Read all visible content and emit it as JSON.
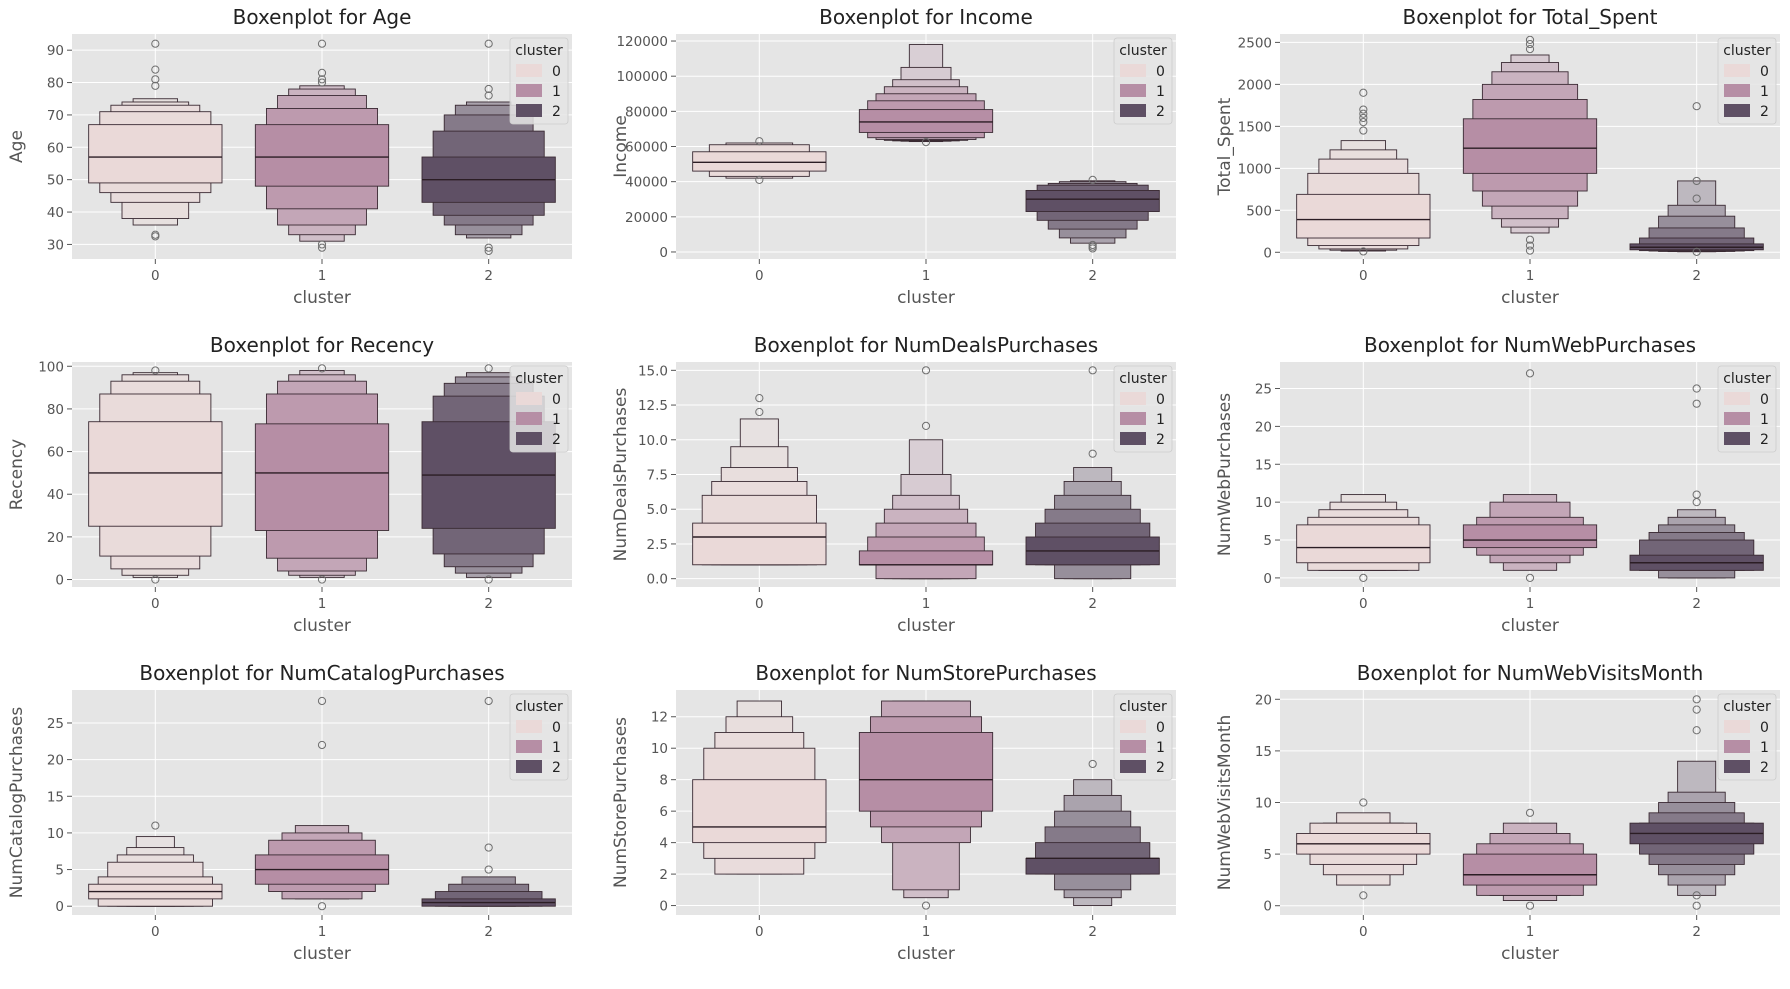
{
  "legend": {
    "title": "cluster",
    "placement": "upper right"
  },
  "palette": [
    "#ead9d8",
    "#b68ea5",
    "#5f5065"
  ],
  "background": "#e5e5e5",
  "grid": true,
  "chart_data": [
    {
      "type": "boxenplot",
      "title": "Boxenplot for Age",
      "xlabel": "cluster",
      "ylabel": "Age",
      "categories": [
        "0",
        "1",
        "2"
      ],
      "ylim": [
        25.5,
        95
      ],
      "yticks": [
        30,
        40,
        50,
        60,
        70,
        80,
        90
      ],
      "series": [
        {
          "name": "0",
          "median": 57,
          "levels": [
            [
              49,
              67
            ],
            [
              46,
              71
            ],
            [
              43,
              73
            ],
            [
              38,
              74
            ],
            [
              36,
              75
            ]
          ],
          "outliers": [
            33,
            32.5,
            79,
            81,
            84,
            92
          ]
        },
        {
          "name": "1",
          "median": 57,
          "levels": [
            [
              48,
              67
            ],
            [
              41,
              72
            ],
            [
              36,
              76
            ],
            [
              33,
              78
            ],
            [
              31,
              79
            ]
          ],
          "outliers": [
            29,
            30,
            80,
            81,
            83,
            92
          ]
        },
        {
          "name": "2",
          "median": 50,
          "levels": [
            [
              43,
              57
            ],
            [
              39,
              65
            ],
            [
              36,
              70
            ],
            [
              33,
              73
            ],
            [
              32,
              74
            ]
          ],
          "outliers": [
            28,
            29,
            76,
            78,
            92
          ]
        }
      ]
    },
    {
      "type": "boxenplot",
      "title": "Boxenplot for Income",
      "xlabel": "cluster",
      "ylabel": "Income",
      "categories": [
        "0",
        "1",
        "2"
      ],
      "ylim": [
        -4000,
        124000
      ],
      "yticks": [
        0,
        20000,
        40000,
        60000,
        80000,
        100000,
        120000
      ],
      "series": [
        {
          "name": "0",
          "median": 51000,
          "levels": [
            [
              46000,
              57000
            ],
            [
              43000,
              61000
            ],
            [
              42000,
              62000
            ]
          ],
          "outliers": [
            41000,
            63000
          ]
        },
        {
          "name": "1",
          "median": 74000,
          "levels": [
            [
              68000,
              81000
            ],
            [
              65000,
              86000
            ],
            [
              64000,
              90000
            ],
            [
              63500,
              94000
            ],
            [
              63200,
              98000
            ],
            [
              63000,
              105000
            ],
            [
              62800,
              118000
            ]
          ],
          "outliers": [
            62500
          ]
        },
        {
          "name": "2",
          "median": 30000,
          "levels": [
            [
              23000,
              35000
            ],
            [
              18000,
              38000
            ],
            [
              13000,
              39000
            ],
            [
              8000,
              40000
            ],
            [
              5000,
              40500
            ]
          ],
          "outliers": [
            2000,
            3000,
            4000,
            41000
          ]
        }
      ]
    },
    {
      "type": "boxenplot",
      "title": "Boxenplot for Total_Spent",
      "xlabel": "cluster",
      "ylabel": "Total_Spent",
      "categories": [
        "0",
        "1",
        "2"
      ],
      "ylim": [
        -80,
        2600
      ],
      "yticks": [
        0,
        500,
        1000,
        1500,
        2000,
        2500
      ],
      "series": [
        {
          "name": "0",
          "median": 390,
          "levels": [
            [
              170,
              690
            ],
            [
              80,
              940
            ],
            [
              40,
              1110
            ],
            [
              25,
              1220
            ],
            [
              15,
              1330
            ]
          ],
          "outliers": [
            10,
            1450,
            1550,
            1600,
            1650,
            1700,
            1900
          ]
        },
        {
          "name": "1",
          "median": 1240,
          "levels": [
            [
              940,
              1590
            ],
            [
              730,
              1820
            ],
            [
              550,
              2000
            ],
            [
              400,
              2150
            ],
            [
              300,
              2260
            ],
            [
              230,
              2350
            ]
          ],
          "outliers": [
            20,
            80,
            150,
            2420,
            2480,
            2530
          ]
        },
        {
          "name": "2",
          "median": 60,
          "levels": [
            [
              30,
              100
            ],
            [
              20,
              170
            ],
            [
              15,
              290
            ],
            [
              10,
              430
            ],
            [
              8,
              560
            ],
            [
              6,
              850
            ]
          ],
          "outliers": [
            5,
            640,
            850,
            1740
          ]
        }
      ]
    },
    {
      "type": "boxenplot",
      "title": "Boxenplot for Recency",
      "xlabel": "cluster",
      "ylabel": "Recency",
      "categories": [
        "0",
        "1",
        "2"
      ],
      "ylim": [
        -3.5,
        102
      ],
      "yticks": [
        0,
        20,
        40,
        60,
        80,
        100
      ],
      "series": [
        {
          "name": "0",
          "median": 50,
          "levels": [
            [
              25,
              74
            ],
            [
              11,
              87
            ],
            [
              5,
              93
            ],
            [
              2,
              96
            ],
            [
              1,
              97
            ]
          ],
          "outliers": [
            0,
            98
          ]
        },
        {
          "name": "1",
          "median": 50,
          "levels": [
            [
              23,
              73
            ],
            [
              10,
              87
            ],
            [
              4,
              93
            ],
            [
              2,
              96
            ],
            [
              1,
              98
            ]
          ],
          "outliers": [
            0,
            99
          ]
        },
        {
          "name": "2",
          "median": 49,
          "levels": [
            [
              24,
              74
            ],
            [
              12,
              86
            ],
            [
              6,
              92
            ],
            [
              3,
              95
            ],
            [
              1,
              97
            ]
          ],
          "outliers": [
            0,
            99
          ]
        }
      ]
    },
    {
      "type": "boxenplot",
      "title": "Boxenplot for NumDealsPurchases",
      "xlabel": "cluster",
      "ylabel": "NumDealsPurchases",
      "categories": [
        "0",
        "1",
        "2"
      ],
      "ylim": [
        -0.6,
        15.6
      ],
      "yticks": [
        0.0,
        2.5,
        5.0,
        7.5,
        10.0,
        12.5,
        15.0
      ],
      "ytick_labels": [
        "0.0",
        "2.5",
        "5.0",
        "7.5",
        "10.0",
        "12.5",
        "15.0"
      ],
      "series": [
        {
          "name": "0",
          "median": 3,
          "levels": [
            [
              1,
              4
            ],
            [
              1,
              6
            ],
            [
              1,
              7
            ],
            [
              1,
              8
            ],
            [
              1,
              9.5
            ],
            [
              1,
              11.5
            ]
          ],
          "outliers": [
            12,
            13
          ]
        },
        {
          "name": "1",
          "median": 1,
          "levels": [
            [
              1,
              2
            ],
            [
              1,
              3
            ],
            [
              0,
              4
            ],
            [
              0,
              5
            ],
            [
              0,
              6
            ],
            [
              0,
              7.5
            ],
            [
              0,
              10
            ]
          ],
          "outliers": [
            11,
            15
          ]
        },
        {
          "name": "2",
          "median": 2,
          "levels": [
            [
              1,
              3
            ],
            [
              1,
              4
            ],
            [
              1,
              5
            ],
            [
              0,
              6
            ],
            [
              0,
              7
            ],
            [
              0,
              8
            ]
          ],
          "outliers": [
            9,
            15
          ]
        }
      ]
    },
    {
      "type": "boxenplot",
      "title": "Boxenplot for NumWebPurchases",
      "xlabel": "cluster",
      "ylabel": "NumWebPurchases",
      "categories": [
        "0",
        "1",
        "2"
      ],
      "ylim": [
        -1.2,
        28.5
      ],
      "yticks": [
        0,
        5,
        10,
        15,
        20,
        25
      ],
      "series": [
        {
          "name": "0",
          "median": 4,
          "levels": [
            [
              2,
              7
            ],
            [
              1,
              8
            ],
            [
              1,
              9
            ],
            [
              1,
              10
            ],
            [
              1,
              11
            ]
          ],
          "outliers": [
            0
          ]
        },
        {
          "name": "1",
          "median": 5,
          "levels": [
            [
              4,
              7
            ],
            [
              3,
              8
            ],
            [
              2,
              10
            ],
            [
              1,
              11
            ]
          ],
          "outliers": [
            0,
            27
          ]
        },
        {
          "name": "2",
          "median": 2,
          "levels": [
            [
              1,
              3
            ],
            [
              1,
              5
            ],
            [
              1,
              6
            ],
            [
              0,
              7
            ],
            [
              0,
              8
            ],
            [
              0,
              9
            ]
          ],
          "outliers": [
            10,
            11,
            23,
            25
          ]
        }
      ]
    },
    {
      "type": "boxenplot",
      "title": "Boxenplot for NumCatalogPurchases",
      "xlabel": "cluster",
      "ylabel": "NumCatalogPurchases",
      "categories": [
        "0",
        "1",
        "2"
      ],
      "ylim": [
        -1.2,
        29.5
      ],
      "yticks": [
        0,
        5,
        10,
        15,
        20,
        25
      ],
      "series": [
        {
          "name": "0",
          "median": 2,
          "levels": [
            [
              1,
              3
            ],
            [
              0,
              4
            ],
            [
              0,
              6
            ],
            [
              0,
              7
            ],
            [
              0,
              8
            ],
            [
              0,
              9.5
            ]
          ],
          "outliers": [
            11
          ]
        },
        {
          "name": "1",
          "median": 5,
          "levels": [
            [
              3,
              7
            ],
            [
              2,
              9
            ],
            [
              1,
              10
            ],
            [
              1,
              11
            ]
          ],
          "outliers": [
            0,
            22,
            28
          ]
        },
        {
          "name": "2",
          "median": 0.5,
          "levels": [
            [
              0,
              1
            ],
            [
              0,
              2
            ],
            [
              0,
              3
            ],
            [
              0,
              4
            ]
          ],
          "outliers": [
            5,
            8,
            28
          ]
        }
      ]
    },
    {
      "type": "boxenplot",
      "title": "Boxenplot for NumStorePurchases",
      "xlabel": "cluster",
      "ylabel": "NumStorePurchases",
      "categories": [
        "0",
        "1",
        "2"
      ],
      "ylim": [
        -0.6,
        13.7
      ],
      "yticks": [
        0,
        2,
        4,
        6,
        8,
        10,
        12
      ],
      "series": [
        {
          "name": "0",
          "median": 5,
          "levels": [
            [
              4,
              8
            ],
            [
              3,
              10
            ],
            [
              2,
              11
            ],
            [
              2,
              12
            ],
            [
              2,
              13
            ]
          ],
          "outliers": []
        },
        {
          "name": "1",
          "median": 8,
          "levels": [
            [
              6,
              11
            ],
            [
              5,
              12
            ],
            [
              4,
              13
            ],
            [
              1,
              13
            ],
            [
              0.5,
              13
            ]
          ],
          "outliers": [
            0
          ]
        },
        {
          "name": "2",
          "median": 3,
          "levels": [
            [
              2,
              3
            ],
            [
              2,
              4
            ],
            [
              2,
              5
            ],
            [
              1,
              6
            ],
            [
              0.5,
              7
            ],
            [
              0,
              8
            ]
          ],
          "outliers": [
            9
          ]
        }
      ]
    },
    {
      "type": "boxenplot",
      "title": "Boxenplot for NumWebVisitsMonth",
      "xlabel": "cluster",
      "ylabel": "NumWebVisitsMonth",
      "categories": [
        "0",
        "1",
        "2"
      ],
      "ylim": [
        -0.9,
        20.9
      ],
      "yticks": [
        0,
        5,
        10,
        15,
        20
      ],
      "series": [
        {
          "name": "0",
          "median": 6,
          "levels": [
            [
              5,
              7
            ],
            [
              4,
              8
            ],
            [
              3,
              8
            ],
            [
              2,
              9
            ]
          ],
          "outliers": [
            1,
            10
          ]
        },
        {
          "name": "1",
          "median": 3,
          "levels": [
            [
              2,
              5
            ],
            [
              1,
              6
            ],
            [
              1,
              7
            ],
            [
              0.5,
              8
            ]
          ],
          "outliers": [
            0,
            9
          ]
        },
        {
          "name": "2",
          "median": 7,
          "levels": [
            [
              6,
              8
            ],
            [
              5,
              8
            ],
            [
              4,
              9
            ],
            [
              3,
              10
            ],
            [
              2,
              11
            ],
            [
              1,
              14
            ]
          ],
          "outliers": [
            0,
            1,
            17,
            19,
            20
          ]
        }
      ]
    }
  ]
}
